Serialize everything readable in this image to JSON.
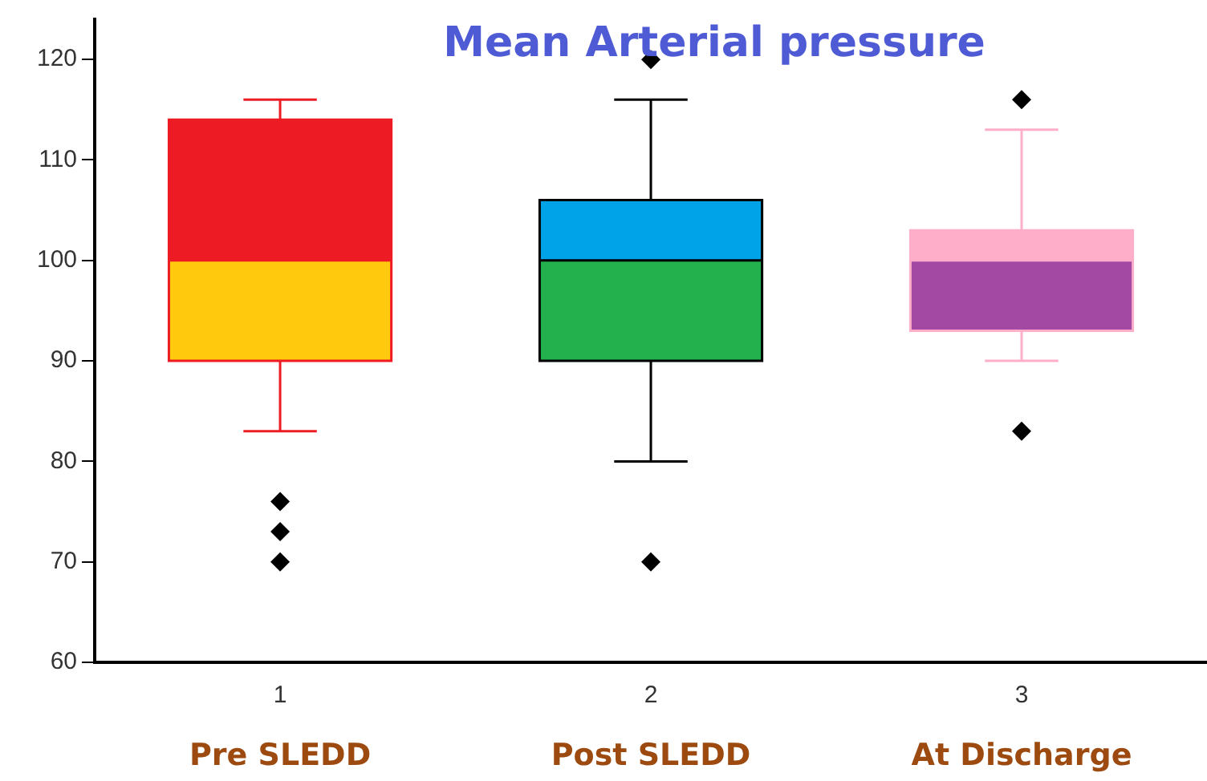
{
  "chart_data": {
    "type": "box",
    "title": "Mean Arterial pressure",
    "categories": [
      "1",
      "2",
      "3"
    ],
    "boxes": [
      {
        "low": 83,
        "q1": 90,
        "median": 100,
        "q3": 114,
        "high": 116,
        "outliers": [
          76,
          73,
          70
        ]
      },
      {
        "low": 80,
        "q1": 90,
        "median": 100,
        "q3": 106,
        "high": 116,
        "outliers": [
          120,
          70
        ]
      },
      {
        "low": 90,
        "q1": 93,
        "median": 100,
        "q3": 103,
        "high": 113,
        "outliers": [
          116,
          83
        ]
      }
    ],
    "colors": [
      [
        "#ed1c24",
        "#ffc90e",
        "#ed1c24"
      ],
      [
        "#00a2e8",
        "#22b14c",
        "#000000"
      ],
      [
        "#ffaec9",
        "#a349a4",
        "#ffaec9"
      ]
    ],
    "ylim": [
      60,
      124
    ],
    "yticks": [
      60,
      70,
      80,
      90,
      100,
      110,
      120
    ],
    "grid": false,
    "legend": false,
    "marker": "diamond",
    "annotations": [
      "Pre SLEDD",
      "Post SLEDD",
      "At Discharge"
    ]
  }
}
